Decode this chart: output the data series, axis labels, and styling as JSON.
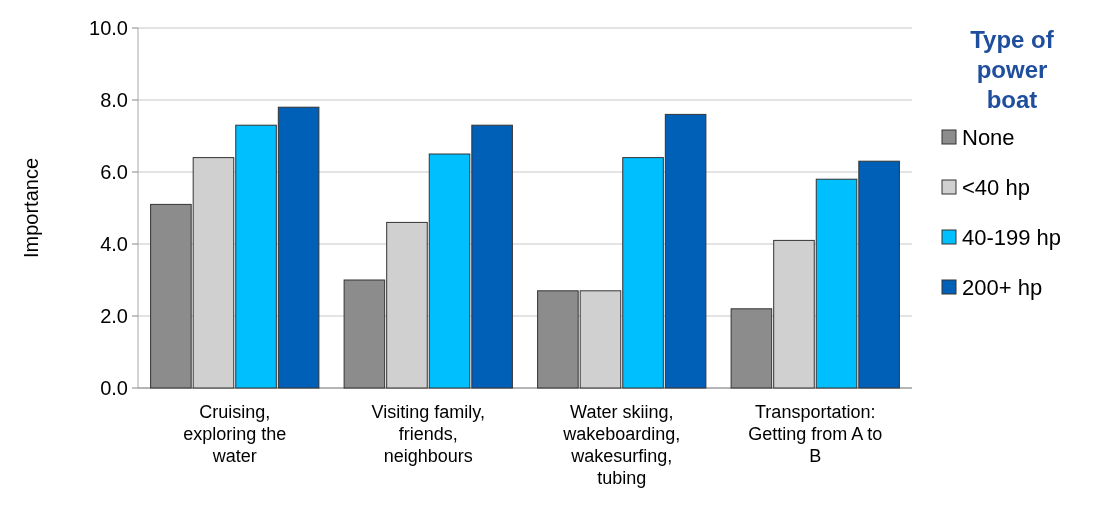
{
  "chart_data": {
    "type": "bar",
    "ylabel": "Importance",
    "legend_title": "Type of power boat",
    "categories": [
      "Cruising, exploring the water",
      "Visiting family, friends, neighbours",
      "Water skiing, wakeboarding, wakesurfing, tubing",
      "Transportation: Getting from A to B"
    ],
    "series": [
      {
        "name": "None",
        "color": "#8c8c8c",
        "values": [
          5.1,
          3.0,
          2.7,
          2.2
        ]
      },
      {
        "name": "<40 hp",
        "color": "#d0d0d0",
        "values": [
          6.4,
          4.6,
          2.7,
          4.1
        ]
      },
      {
        "name": "40-199 hp",
        "color": "#00bfff",
        "values": [
          7.3,
          6.5,
          6.4,
          5.8
        ]
      },
      {
        "name": "200+ hp",
        "color": "#0060b8",
        "values": [
          7.8,
          7.3,
          7.6,
          6.3
        ]
      }
    ],
    "ylim": [
      0,
      10
    ],
    "yticks": [
      {
        "value": 0,
        "label": "0.0"
      },
      {
        "value": 2,
        "label": "2.0"
      },
      {
        "value": 4,
        "label": "4.0"
      },
      {
        "value": 6,
        "label": "6.0"
      },
      {
        "value": 8,
        "label": "8.0"
      },
      {
        "value": 10,
        "label": "10.0"
      }
    ],
    "grid": "y",
    "legend": "right"
  }
}
